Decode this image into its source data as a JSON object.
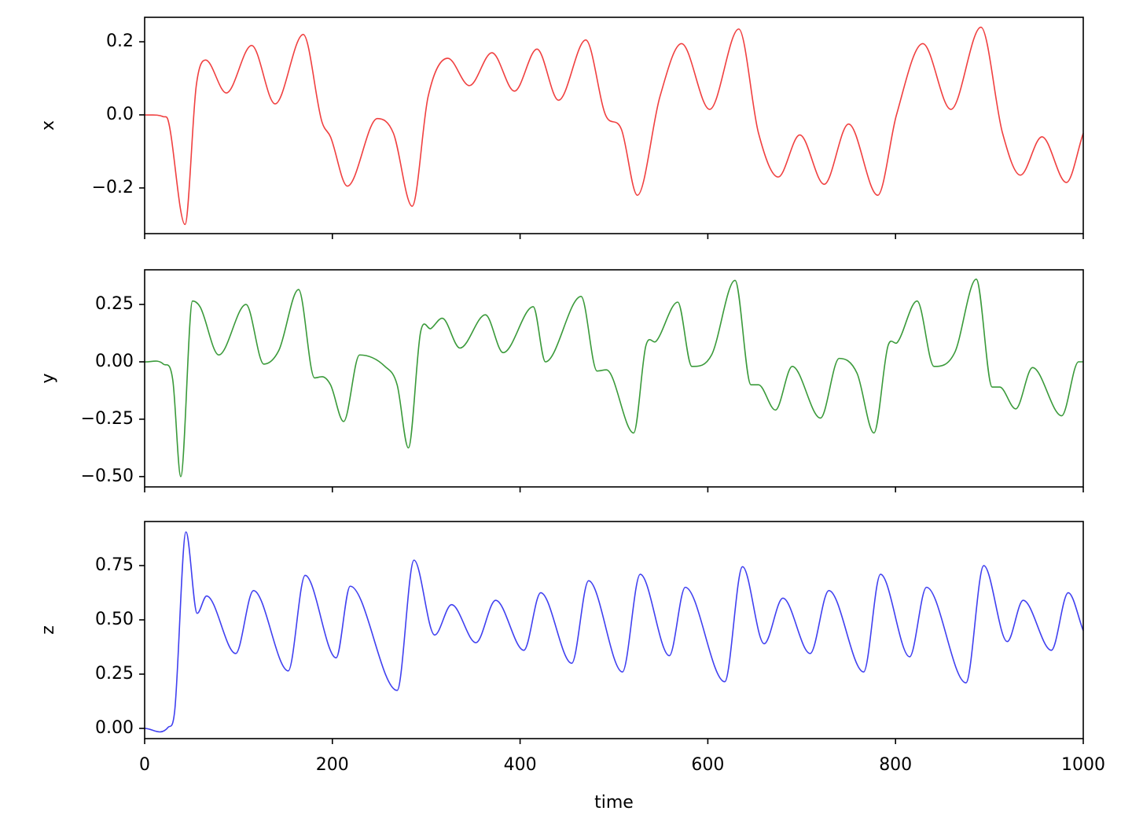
{
  "chart_data": [
    {
      "type": "line",
      "ylabel": "x",
      "color": "#f04040",
      "x": [
        0,
        20,
        25,
        43,
        55,
        65,
        87,
        114,
        139,
        169,
        189,
        198,
        216,
        248,
        265,
        285,
        302,
        323,
        346,
        370,
        394,
        418,
        441,
        470,
        491,
        508,
        525,
        549,
        572,
        602,
        633,
        654,
        675,
        698,
        724,
        750,
        781,
        801,
        829,
        859,
        891,
        914,
        933,
        956,
        982,
        1000
      ],
      "values": [
        0,
        -0.005,
        -0.015,
        -0.3,
        0.08,
        0.15,
        0.06,
        0.19,
        0.03,
        0.22,
        -0.02,
        -0.06,
        -0.195,
        -0.01,
        -0.05,
        -0.25,
        0.05,
        0.155,
        0.08,
        0.17,
        0.065,
        0.18,
        0.04,
        0.205,
        0.0,
        -0.04,
        -0.22,
        0.05,
        0.195,
        0.015,
        0.235,
        -0.05,
        -0.17,
        -0.055,
        -0.19,
        -0.025,
        -0.22,
        0.0,
        0.195,
        0.015,
        0.24,
        -0.05,
        -0.165,
        -0.06,
        -0.185,
        -0.05
      ],
      "xlim": [
        0,
        1000
      ],
      "xticks": [
        0,
        200,
        400,
        600,
        800,
        1000
      ],
      "ylim": [
        -0.325,
        0.267
      ],
      "yticks": [
        {
          "value": -0.2,
          "label": "−0.2"
        },
        {
          "value": 0,
          "label": "0.0"
        },
        0.2
      ]
    },
    {
      "type": "line",
      "ylabel": "y",
      "color": "#3a9a3a",
      "x": [
        0,
        20,
        30,
        38.5,
        51,
        59,
        79,
        108,
        127,
        143,
        164,
        181,
        189,
        198,
        212,
        229,
        256,
        269,
        281,
        294,
        305,
        317,
        336,
        363,
        382,
        414,
        427,
        465,
        482,
        492,
        521,
        534,
        545,
        568,
        583,
        604,
        629,
        646,
        654,
        672,
        690,
        720,
        740,
        759,
        777,
        792,
        802,
        823,
        841,
        863,
        886,
        903,
        911,
        928,
        946,
        977,
        995,
        1000
      ],
      "values": [
        0,
        -0.01,
        -0.08,
        -0.5,
        0.265,
        0.24,
        0.03,
        0.25,
        -0.01,
        0.05,
        0.315,
        -0.07,
        -0.065,
        -0.1,
        -0.26,
        0.03,
        -0.02,
        -0.1,
        -0.375,
        0.13,
        0.145,
        0.19,
        0.06,
        0.205,
        0.04,
        0.24,
        0.0,
        0.285,
        -0.04,
        -0.035,
        -0.31,
        0.07,
        0.09,
        0.26,
        -0.02,
        0.03,
        0.355,
        -0.1,
        -0.1,
        -0.21,
        -0.02,
        -0.245,
        0.015,
        -0.05,
        -0.31,
        0.07,
        0.085,
        0.265,
        -0.02,
        0.04,
        0.36,
        -0.11,
        -0.11,
        -0.205,
        -0.025,
        -0.235,
        0.0,
        0.0
      ],
      "xlim": [
        0,
        1000
      ],
      "xticks": [
        0,
        200,
        400,
        600,
        800,
        1000
      ],
      "ylim": [
        -0.545,
        0.401
      ],
      "yticks": [
        {
          "value": -0.5,
          "label": "−0.50"
        },
        {
          "value": -0.25,
          "label": "−0.25"
        },
        {
          "value": 0,
          "label": "0.00"
        },
        0.25
      ]
    },
    {
      "type": "line",
      "ylabel": "z",
      "xlabel": "time",
      "color": "#4040f0",
      "x": [
        0,
        25,
        32,
        44,
        56,
        66,
        97,
        116,
        153,
        171,
        204,
        219,
        269,
        287,
        309,
        327,
        353,
        374,
        404,
        422,
        455,
        473,
        509,
        528,
        559,
        576,
        618,
        637,
        660,
        680,
        709,
        729,
        766,
        784,
        815,
        833,
        875,
        894,
        919,
        936,
        966,
        984,
        1000
      ],
      "values": [
        0,
        0.005,
        0.08,
        0.905,
        0.53,
        0.61,
        0.345,
        0.635,
        0.265,
        0.705,
        0.325,
        0.655,
        0.175,
        0.775,
        0.43,
        0.57,
        0.395,
        0.59,
        0.36,
        0.625,
        0.3,
        0.68,
        0.26,
        0.71,
        0.335,
        0.65,
        0.215,
        0.745,
        0.39,
        0.6,
        0.345,
        0.635,
        0.26,
        0.71,
        0.33,
        0.65,
        0.21,
        0.75,
        0.4,
        0.59,
        0.36,
        0.625,
        0.45
      ],
      "xlim": [
        0,
        1000
      ],
      "xticks": [
        0,
        200,
        400,
        600,
        800,
        1000
      ],
      "ylim": [
        -0.047,
        0.953
      ],
      "yticks": [
        {
          "value": 0,
          "label": "0.00"
        },
        0.25,
        {
          "value": 0.5,
          "label": "0.50"
        },
        0.75
      ]
    }
  ]
}
